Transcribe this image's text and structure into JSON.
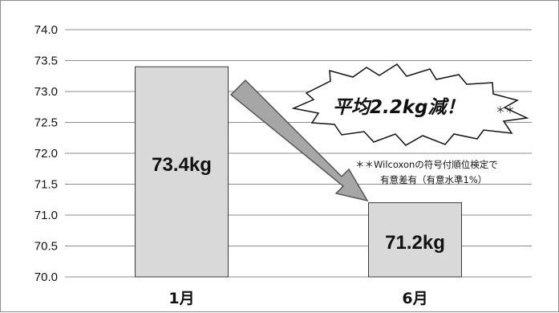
{
  "chart_data": {
    "type": "bar",
    "categories": [
      "1月",
      "6月"
    ],
    "values": [
      73.4,
      71.2
    ],
    "bar_labels": [
      "73.4kg",
      "71.2kg"
    ],
    "ylim": [
      70.0,
      74.0
    ],
    "y_ticks": [
      "70.0",
      "70.5",
      "71.0",
      "71.5",
      "72.0",
      "72.5",
      "73.0",
      "73.5",
      "74.0"
    ],
    "grid": true,
    "title": "",
    "xlabel": "",
    "ylabel": "",
    "annotations": {
      "burst_text": "平均2.2kg減！",
      "burst_stars": "＊＊",
      "note_line1": "＊＊Wilcoxonの符号付順位検定で",
      "note_line2": "有意差有（有意水準1%）"
    }
  },
  "colors": {
    "bar_fill": "#d9d9d9",
    "bar_stroke": "#3a3a3a",
    "arrow_fill": "#a6a6a6",
    "arrow_stroke": "#555555",
    "grid": "#8c8c8c",
    "burst_fill": "#ffffff",
    "burst_stroke": "#111111"
  }
}
